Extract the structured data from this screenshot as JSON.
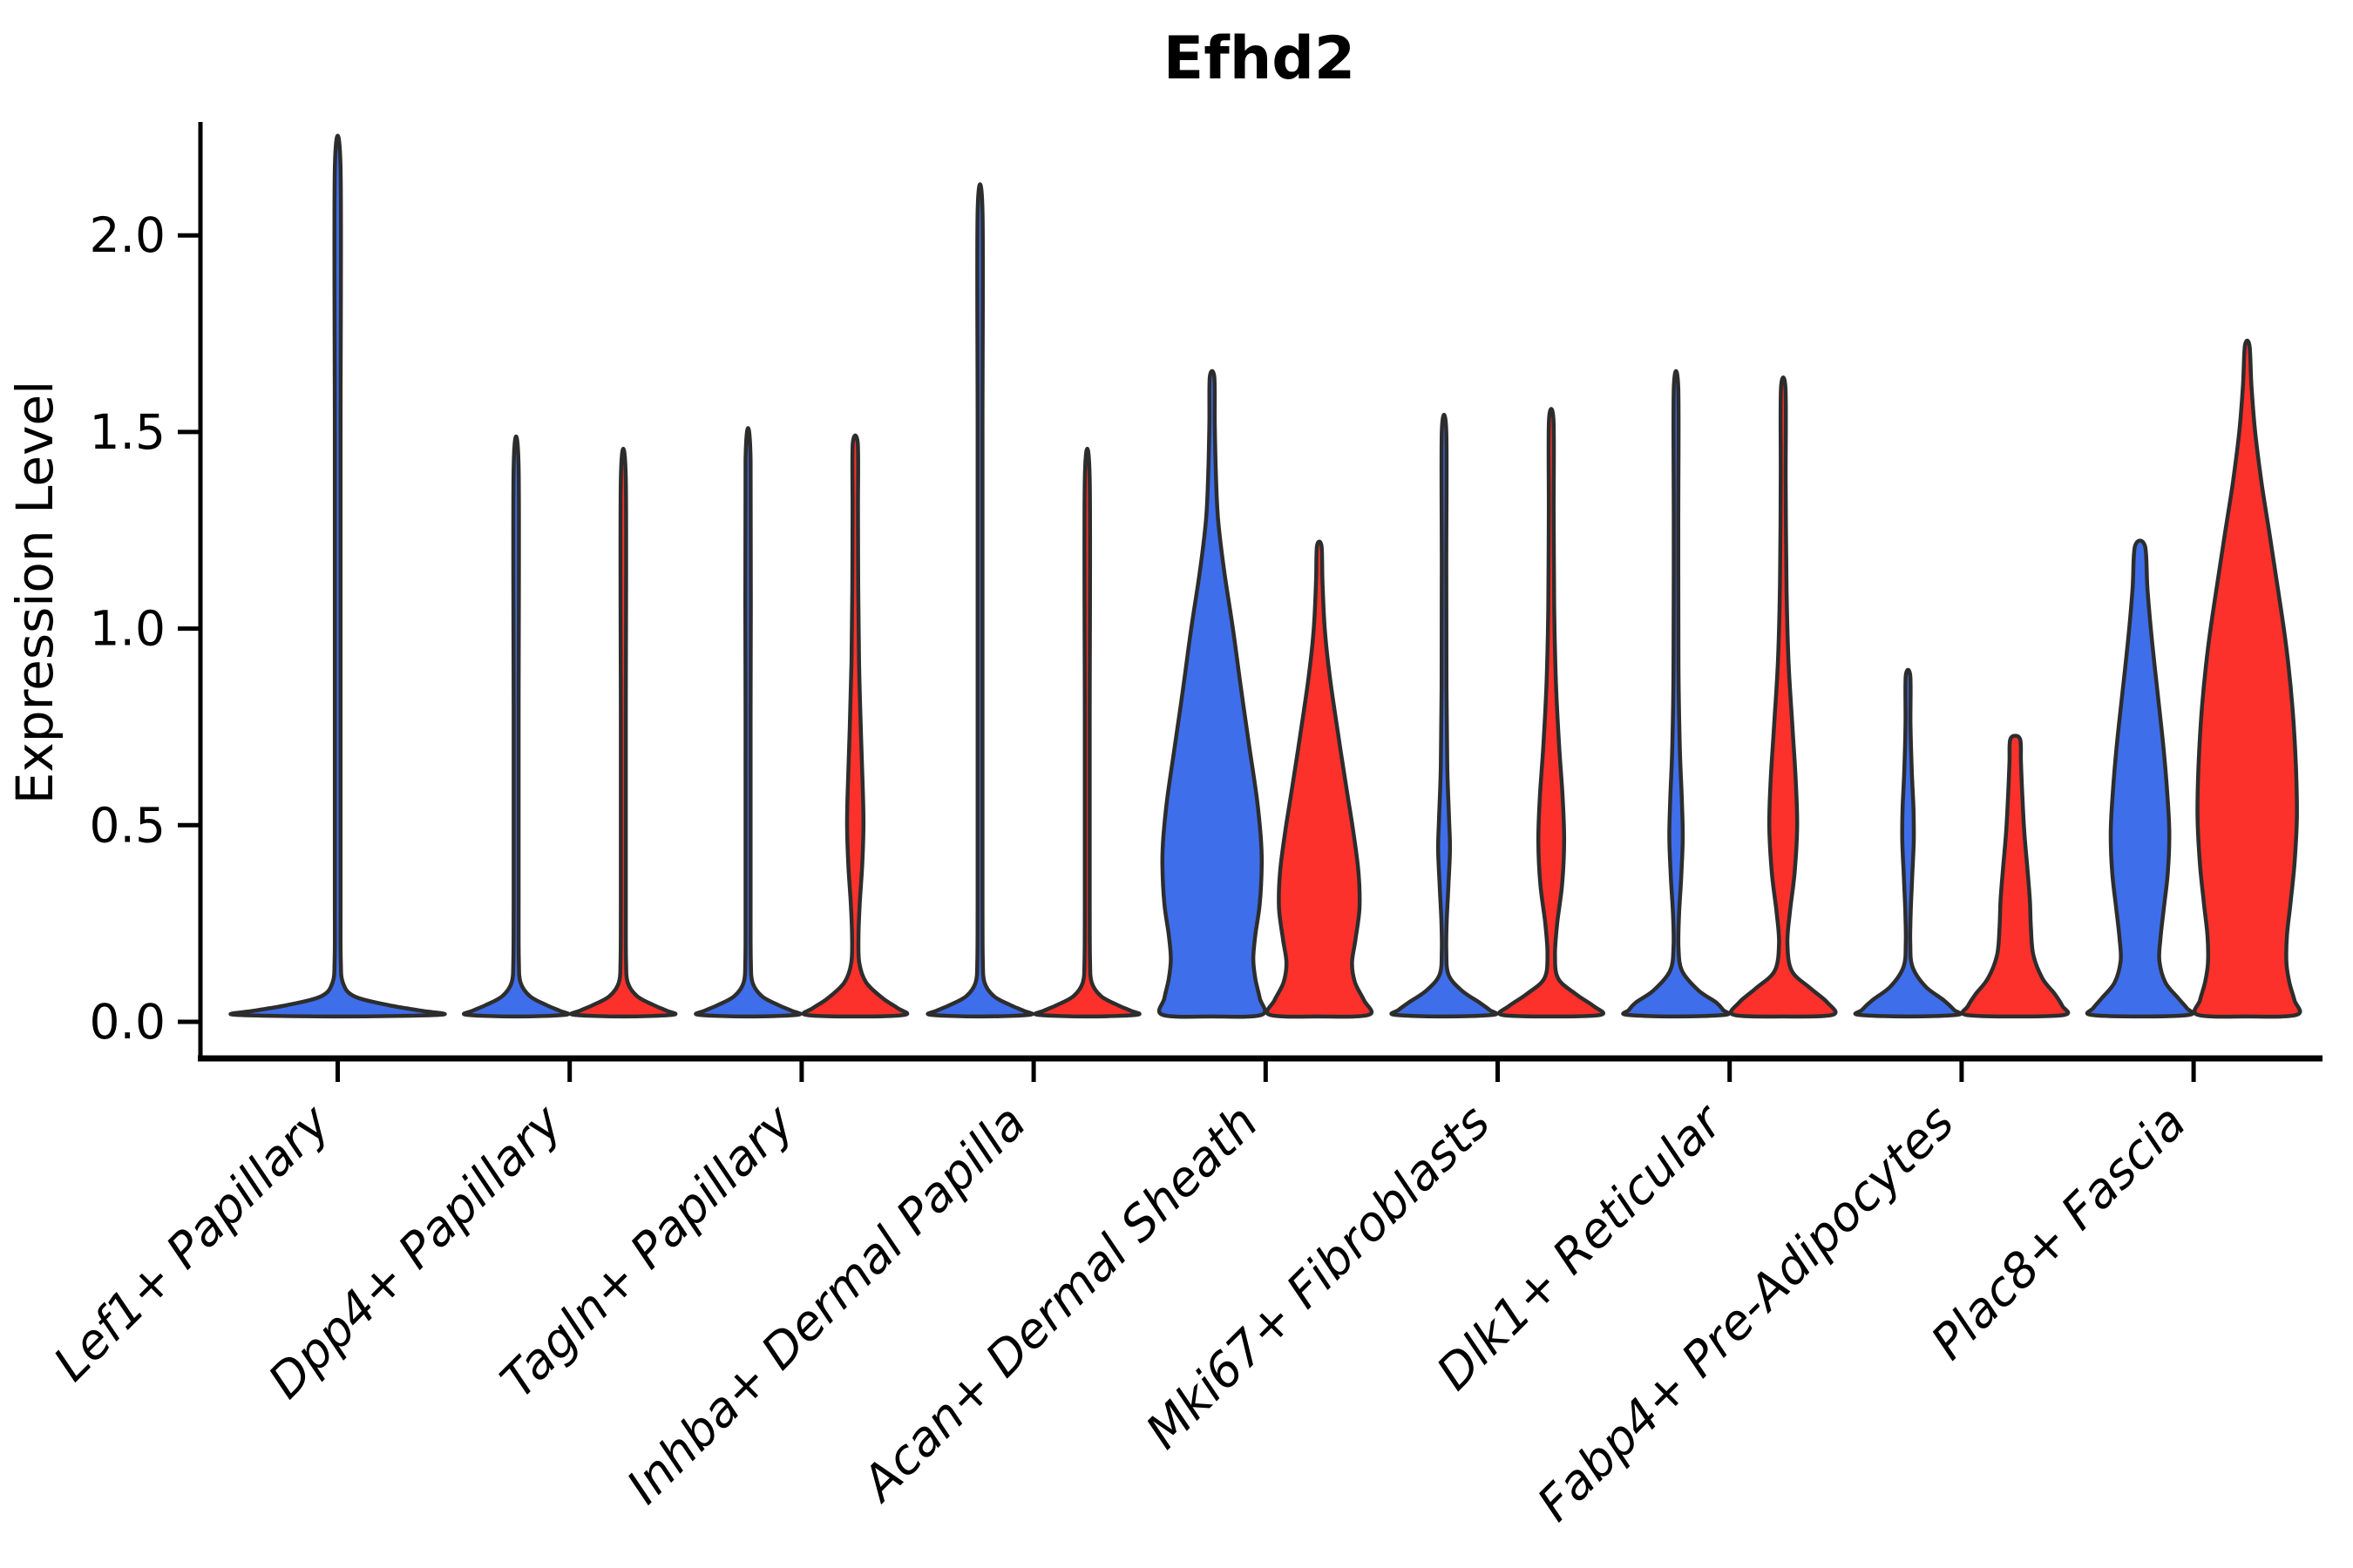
{
  "chart_data": {
    "type": "violin",
    "title": "Efhd2",
    "ylabel": "Expression Level",
    "ylim": [
      0,
      2.3
    ],
    "yticks": [
      0.0,
      0.5,
      1.0,
      1.5,
      2.0
    ],
    "ytick_labels": [
      "0.0",
      "0.5",
      "1.0",
      "1.5",
      "2.0"
    ],
    "grid": false,
    "legend": "none",
    "categories": [
      "Lef1+ Papillary",
      "Dpp4+ Papillary",
      "Tagln+ Papillary",
      "Inhba+ Dermal Papilla",
      "Acan+ Dermal Sheath",
      "Mki67+ Fibroblasts",
      "Dlk1+ Reticular",
      "Fabp4+ Pre-Adipocytes",
      "Plac8+ Fascia"
    ],
    "groups": [
      {
        "key": "blue",
        "color": "#3f6eea"
      },
      {
        "key": "red",
        "color": "#fc312b"
      }
    ],
    "outline_color": "#2d2d2d",
    "violins": [
      {
        "category": "Lef1+ Papillary",
        "group": "blue",
        "position": "center",
        "max_expression": 2.17,
        "profile": [
          [
            2.17,
            0.028
          ],
          [
            1.5,
            0.028
          ],
          [
            0.8,
            0.028
          ],
          [
            0.3,
            0.028
          ],
          [
            0.16,
            0.03
          ],
          [
            0.1,
            0.05
          ],
          [
            0.065,
            0.16
          ],
          [
            0.042,
            0.5
          ],
          [
            0.028,
            0.82
          ],
          [
            0.018,
            1.0
          ]
        ]
      },
      {
        "category": "Dpp4+ Papillary",
        "group": "blue",
        "position": "left",
        "max_expression": 1.41,
        "profile": [
          [
            1.41,
            0.05
          ],
          [
            0.78,
            0.05
          ],
          [
            0.3,
            0.05
          ],
          [
            0.16,
            0.055
          ],
          [
            0.1,
            0.09
          ],
          [
            0.065,
            0.28
          ],
          [
            0.042,
            0.62
          ],
          [
            0.028,
            0.88
          ],
          [
            0.018,
            1.0
          ]
        ]
      },
      {
        "category": "Dpp4+ Papillary",
        "group": "red",
        "position": "right",
        "max_expression": 1.38,
        "profile": [
          [
            1.38,
            0.05
          ],
          [
            0.76,
            0.05
          ],
          [
            0.3,
            0.05
          ],
          [
            0.16,
            0.055
          ],
          [
            0.1,
            0.09
          ],
          [
            0.065,
            0.28
          ],
          [
            0.042,
            0.62
          ],
          [
            0.028,
            0.88
          ],
          [
            0.018,
            1.0
          ]
        ]
      },
      {
        "category": "Tagln+ Papillary",
        "group": "blue",
        "position": "left",
        "max_expression": 1.43,
        "profile": [
          [
            1.43,
            0.05
          ],
          [
            0.79,
            0.05
          ],
          [
            0.3,
            0.05
          ],
          [
            0.16,
            0.055
          ],
          [
            0.1,
            0.09
          ],
          [
            0.065,
            0.28
          ],
          [
            0.042,
            0.62
          ],
          [
            0.028,
            0.88
          ],
          [
            0.018,
            1.0
          ]
        ]
      },
      {
        "category": "Tagln+ Papillary",
        "group": "red",
        "position": "right",
        "max_expression": 1.47,
        "profile": [
          [
            1.47,
            0.05
          ],
          [
            1.3,
            0.055
          ],
          [
            1.1,
            0.06
          ],
          [
            0.92,
            0.075
          ],
          [
            0.75,
            0.11
          ],
          [
            0.6,
            0.15
          ],
          [
            0.5,
            0.165
          ],
          [
            0.4,
            0.14
          ],
          [
            0.3,
            0.09
          ],
          [
            0.22,
            0.065
          ],
          [
            0.15,
            0.08
          ],
          [
            0.1,
            0.22
          ],
          [
            0.06,
            0.55
          ],
          [
            0.035,
            0.85
          ],
          [
            0.018,
            1.0
          ]
        ]
      },
      {
        "category": "Inhba+ Dermal Papilla",
        "group": "blue",
        "position": "left",
        "max_expression": 2.06,
        "profile": [
          [
            2.06,
            0.05
          ],
          [
            1.5,
            0.05
          ],
          [
            0.7,
            0.05
          ],
          [
            0.3,
            0.05
          ],
          [
            0.16,
            0.055
          ],
          [
            0.1,
            0.09
          ],
          [
            0.065,
            0.28
          ],
          [
            0.042,
            0.62
          ],
          [
            0.028,
            0.88
          ],
          [
            0.018,
            1.0
          ]
        ]
      },
      {
        "category": "Inhba+ Dermal Papilla",
        "group": "red",
        "position": "right",
        "max_expression": 1.38,
        "profile": [
          [
            1.38,
            0.05
          ],
          [
            0.76,
            0.05
          ],
          [
            0.3,
            0.05
          ],
          [
            0.16,
            0.055
          ],
          [
            0.1,
            0.09
          ],
          [
            0.065,
            0.28
          ],
          [
            0.042,
            0.62
          ],
          [
            0.028,
            0.88
          ],
          [
            0.018,
            1.0
          ]
        ]
      },
      {
        "category": "Acan+ Dermal Sheath",
        "group": "blue",
        "position": "left",
        "max_expression": 1.64,
        "profile": [
          [
            1.64,
            0.045
          ],
          [
            1.52,
            0.055
          ],
          [
            1.4,
            0.075
          ],
          [
            1.28,
            0.12
          ],
          [
            1.15,
            0.24
          ],
          [
            1.0,
            0.42
          ],
          [
            0.85,
            0.58
          ],
          [
            0.7,
            0.75
          ],
          [
            0.57,
            0.9
          ],
          [
            0.47,
            0.98
          ],
          [
            0.4,
            1.0
          ],
          [
            0.3,
            0.96
          ],
          [
            0.22,
            0.87
          ],
          [
            0.16,
            0.83
          ],
          [
            0.11,
            0.87
          ],
          [
            0.06,
            0.96
          ],
          [
            0.018,
            1.0
          ]
        ]
      },
      {
        "category": "Acan+ Dermal Sheath",
        "group": "red",
        "position": "right",
        "max_expression": 1.21,
        "profile": [
          [
            1.21,
            0.045
          ],
          [
            1.12,
            0.065
          ],
          [
            1.0,
            0.11
          ],
          [
            0.88,
            0.21
          ],
          [
            0.74,
            0.37
          ],
          [
            0.6,
            0.54
          ],
          [
            0.48,
            0.69
          ],
          [
            0.38,
            0.79
          ],
          [
            0.29,
            0.81
          ],
          [
            0.21,
            0.73
          ],
          [
            0.15,
            0.66
          ],
          [
            0.1,
            0.72
          ],
          [
            0.055,
            0.9
          ],
          [
            0.018,
            1.0
          ]
        ]
      },
      {
        "category": "Mki67+ Fibroblasts",
        "group": "blue",
        "position": "left",
        "max_expression": 1.5,
        "profile": [
          [
            1.5,
            0.045
          ],
          [
            1.15,
            0.045
          ],
          [
            0.85,
            0.05
          ],
          [
            0.65,
            0.065
          ],
          [
            0.52,
            0.1
          ],
          [
            0.44,
            0.12
          ],
          [
            0.35,
            0.09
          ],
          [
            0.26,
            0.055
          ],
          [
            0.18,
            0.045
          ],
          [
            0.12,
            0.09
          ],
          [
            0.08,
            0.35
          ],
          [
            0.05,
            0.7
          ],
          [
            0.03,
            0.92
          ],
          [
            0.018,
            1.0
          ]
        ]
      },
      {
        "category": "Mki67+ Fibroblasts",
        "group": "red",
        "position": "right",
        "max_expression": 1.53,
        "profile": [
          [
            1.53,
            0.045
          ],
          [
            1.3,
            0.05
          ],
          [
            1.05,
            0.06
          ],
          [
            0.86,
            0.095
          ],
          [
            0.7,
            0.16
          ],
          [
            0.57,
            0.23
          ],
          [
            0.46,
            0.26
          ],
          [
            0.35,
            0.22
          ],
          [
            0.25,
            0.12
          ],
          [
            0.17,
            0.075
          ],
          [
            0.11,
            0.14
          ],
          [
            0.07,
            0.5
          ],
          [
            0.04,
            0.85
          ],
          [
            0.018,
            1.0
          ]
        ]
      },
      {
        "category": "Dlk1+ Reticular",
        "group": "blue",
        "position": "left",
        "max_expression": 1.61,
        "profile": [
          [
            1.61,
            0.045
          ],
          [
            1.25,
            0.045
          ],
          [
            0.9,
            0.05
          ],
          [
            0.7,
            0.075
          ],
          [
            0.57,
            0.115
          ],
          [
            0.47,
            0.135
          ],
          [
            0.37,
            0.105
          ],
          [
            0.27,
            0.06
          ],
          [
            0.19,
            0.05
          ],
          [
            0.13,
            0.12
          ],
          [
            0.08,
            0.45
          ],
          [
            0.05,
            0.8
          ],
          [
            0.03,
            0.95
          ],
          [
            0.018,
            1.0
          ]
        ]
      },
      {
        "category": "Dlk1+ Reticular",
        "group": "red",
        "position": "right",
        "max_expression": 1.61,
        "profile": [
          [
            1.61,
            0.045
          ],
          [
            1.38,
            0.05
          ],
          [
            1.12,
            0.065
          ],
          [
            0.92,
            0.105
          ],
          [
            0.76,
            0.18
          ],
          [
            0.62,
            0.25
          ],
          [
            0.5,
            0.28
          ],
          [
            0.38,
            0.23
          ],
          [
            0.28,
            0.135
          ],
          [
            0.2,
            0.085
          ],
          [
            0.13,
            0.17
          ],
          [
            0.085,
            0.55
          ],
          [
            0.05,
            0.88
          ],
          [
            0.018,
            1.0
          ]
        ]
      },
      {
        "category": "Fabp4+ Pre-Adipocytes",
        "group": "blue",
        "position": "left",
        "max_expression": 0.88,
        "profile": [
          [
            0.88,
            0.045
          ],
          [
            0.76,
            0.05
          ],
          [
            0.64,
            0.075
          ],
          [
            0.54,
            0.11
          ],
          [
            0.46,
            0.115
          ],
          [
            0.37,
            0.085
          ],
          [
            0.28,
            0.055
          ],
          [
            0.2,
            0.045
          ],
          [
            0.14,
            0.09
          ],
          [
            0.09,
            0.35
          ],
          [
            0.055,
            0.72
          ],
          [
            0.03,
            0.93
          ],
          [
            0.018,
            1.0
          ]
        ]
      },
      {
        "category": "Fabp4+ Pre-Adipocytes",
        "group": "red",
        "position": "right",
        "max_expression": 0.72,
        "profile": [
          [
            0.72,
            0.095
          ],
          [
            0.66,
            0.115
          ],
          [
            0.57,
            0.145
          ],
          [
            0.48,
            0.185
          ],
          [
            0.39,
            0.245
          ],
          [
            0.31,
            0.295
          ],
          [
            0.24,
            0.315
          ],
          [
            0.17,
            0.365
          ],
          [
            0.11,
            0.55
          ],
          [
            0.07,
            0.8
          ],
          [
            0.04,
            0.95
          ],
          [
            0.018,
            1.0
          ]
        ]
      },
      {
        "category": "Plac8+ Fascia",
        "group": "blue",
        "position": "left",
        "max_expression": 1.21,
        "profile": [
          [
            1.21,
            0.1
          ],
          [
            1.1,
            0.15
          ],
          [
            0.97,
            0.24
          ],
          [
            0.83,
            0.36
          ],
          [
            0.7,
            0.47
          ],
          [
            0.58,
            0.55
          ],
          [
            0.48,
            0.59
          ],
          [
            0.38,
            0.56
          ],
          [
            0.29,
            0.48
          ],
          [
            0.21,
            0.41
          ],
          [
            0.155,
            0.39
          ],
          [
            0.1,
            0.51
          ],
          [
            0.06,
            0.77
          ],
          [
            0.035,
            0.94
          ],
          [
            0.018,
            1.0
          ]
        ]
      },
      {
        "category": "Plac8+ Fascia",
        "group": "red",
        "position": "right",
        "max_expression": 1.72,
        "profile": [
          [
            1.72,
            0.045
          ],
          [
            1.62,
            0.085
          ],
          [
            1.5,
            0.16
          ],
          [
            1.37,
            0.29
          ],
          [
            1.24,
            0.45
          ],
          [
            1.1,
            0.62
          ],
          [
            0.95,
            0.79
          ],
          [
            0.8,
            0.91
          ],
          [
            0.65,
            0.98
          ],
          [
            0.52,
            1.0
          ],
          [
            0.4,
            0.95
          ],
          [
            0.3,
            0.87
          ],
          [
            0.22,
            0.8
          ],
          [
            0.15,
            0.79
          ],
          [
            0.1,
            0.85
          ],
          [
            0.055,
            0.95
          ],
          [
            0.018,
            1.0
          ]
        ]
      }
    ]
  }
}
